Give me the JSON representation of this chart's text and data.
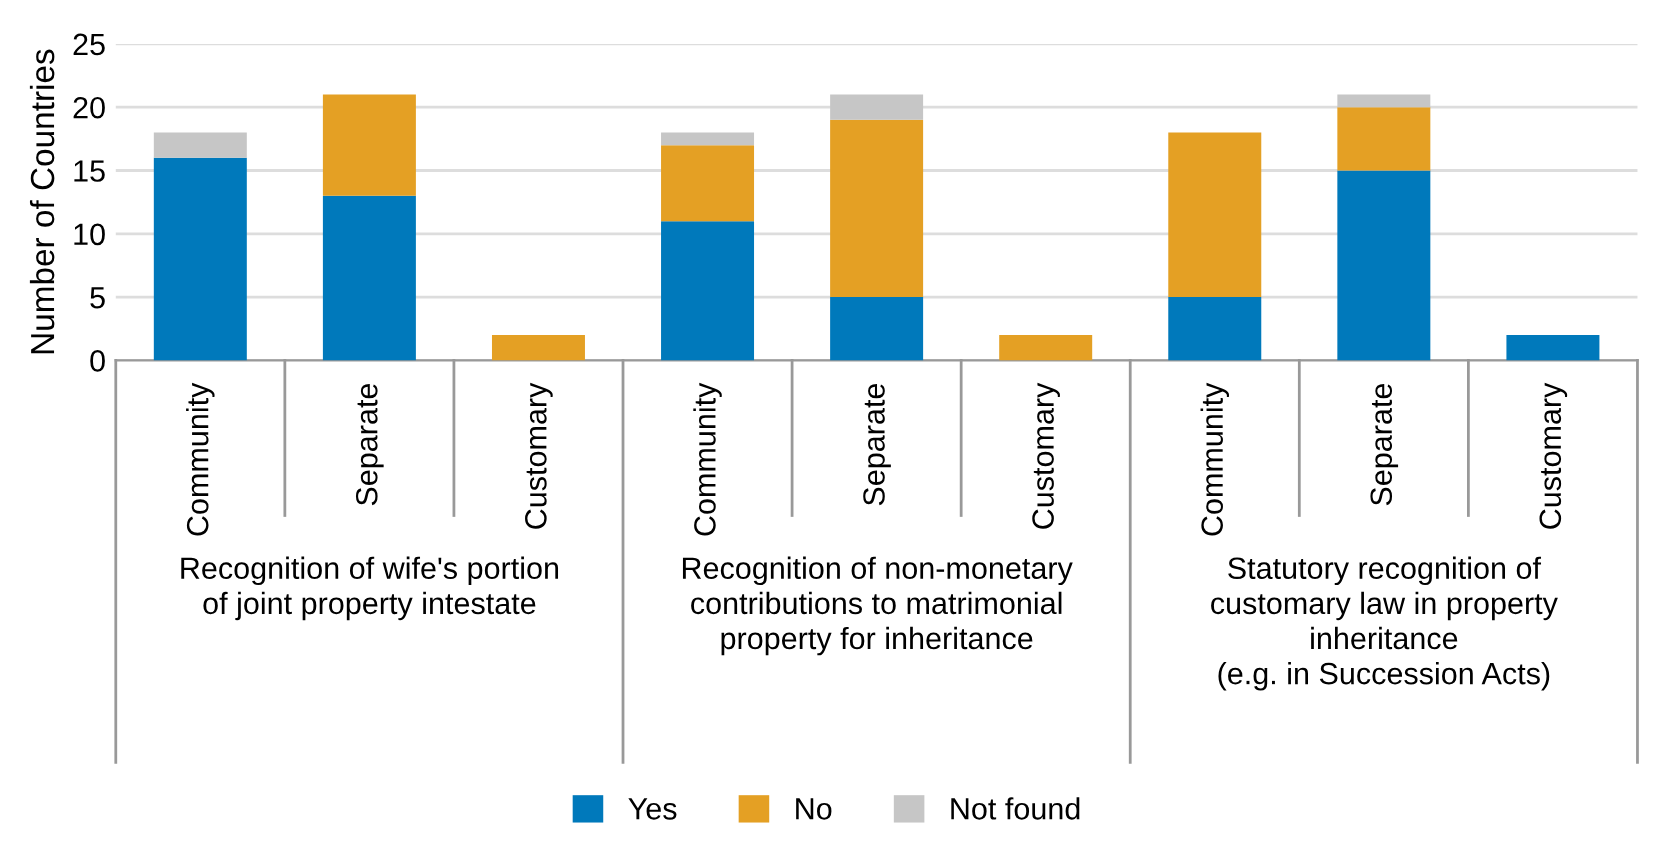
{
  "chart_data": {
    "type": "bar",
    "stacked": true,
    "ylabel": "Number of Countries",
    "categories": [
      "Community",
      "Separate",
      "Customary",
      "Community",
      "Separate",
      "Customary",
      "Community",
      "Separate",
      "Customary"
    ],
    "series": [
      {
        "name": "Yes",
        "color": "#0079bb",
        "values": [
          16,
          13,
          0,
          11,
          5,
          0,
          5,
          15,
          2
        ]
      },
      {
        "name": "No",
        "color": "#e4a024",
        "values": [
          0,
          8,
          2,
          6,
          14,
          2,
          13,
          5,
          0
        ]
      },
      {
        "name": "Not found",
        "color": "#c6c6c6",
        "values": [
          2,
          0,
          0,
          1,
          2,
          0,
          0,
          1,
          0
        ]
      }
    ],
    "annotations": [
      "Recognition of wife's portion\nof joint property intestate",
      "Recognition of non-monetary\ncontributions to matrimonial\nproperty for inheritance",
      "Statutory recognition of\ncustomary law in property\ninheritance\n(e.g. in Succession Acts)"
    ],
    "ylim": [
      0,
      25
    ],
    "yticks": [
      0,
      5,
      10,
      15,
      20,
      25
    ],
    "grid": "y",
    "legend": "bottom"
  }
}
